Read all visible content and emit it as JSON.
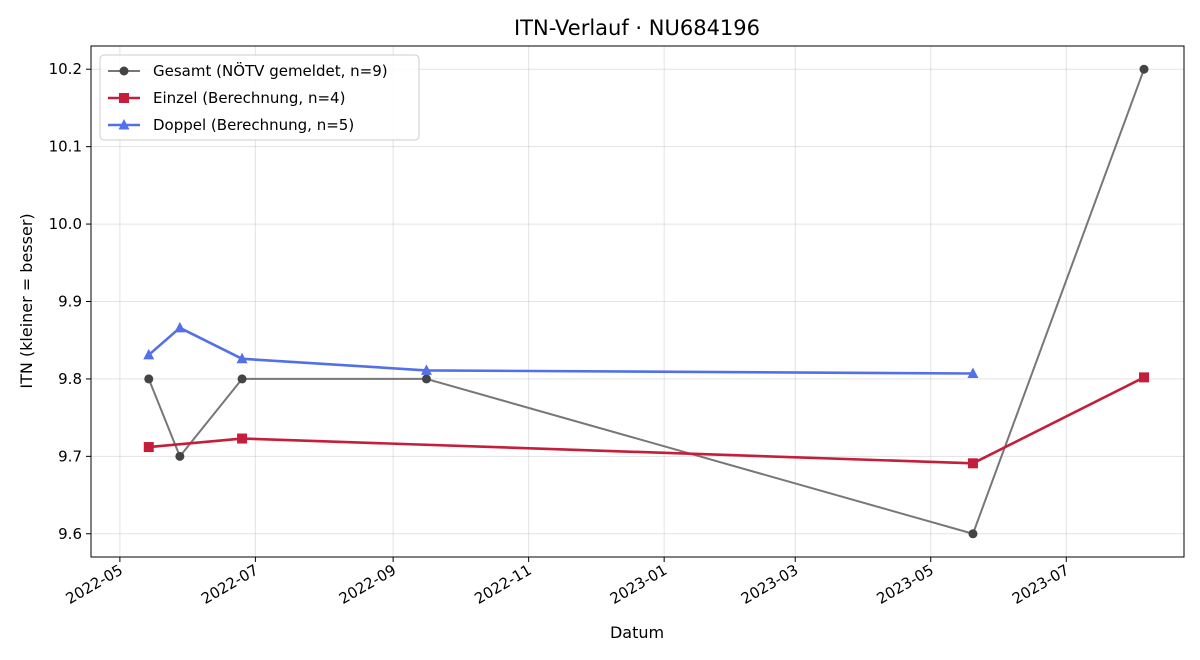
{
  "chart_data": {
    "type": "line",
    "title": "ITN-Verlauf · NU684196",
    "xlabel": "Datum",
    "ylabel": "ITN  (kleiner = besser)",
    "x_axis_type": "date",
    "xlim": [
      "2022-04-18",
      "2023-08-23"
    ],
    "ylim": [
      9.57,
      10.23
    ],
    "x_ticks": [
      "2022-05",
      "2022-07",
      "2022-09",
      "2022-11",
      "2023-01",
      "2023-03",
      "2023-05",
      "2023-07"
    ],
    "x_tick_dates": [
      "2022-05-01",
      "2022-07-01",
      "2022-09-01",
      "2022-11-01",
      "2023-01-01",
      "2023-03-01",
      "2023-05-01",
      "2023-07-01"
    ],
    "y_ticks": [
      9.6,
      9.7,
      9.8,
      9.9,
      10.0,
      10.1,
      10.2
    ],
    "y_tick_labels": [
      "9.6",
      "9.7",
      "9.8",
      "9.9",
      "10.0",
      "10.1",
      "10.2"
    ],
    "grid": true,
    "legend_position": "top-left",
    "series": [
      {
        "name": "Gesamt (NÖTV gemeldet, n=9)",
        "color": "#777777",
        "marker_color": "#444444",
        "marker": "circle",
        "points": [
          {
            "x": "2022-05-14",
            "y": 9.8
          },
          {
            "x": "2022-05-28",
            "y": 9.7
          },
          {
            "x": "2022-06-25",
            "y": 9.8
          },
          {
            "x": "2022-09-16",
            "y": 9.8
          },
          {
            "x": "2023-05-20",
            "y": 9.6
          },
          {
            "x": "2023-08-05",
            "y": 10.2
          }
        ]
      },
      {
        "name": "Einzel (Berechnung, n=4)",
        "color": "#c41e3a",
        "marker_color": "#c41e3a",
        "marker": "square",
        "points": [
          {
            "x": "2022-05-14",
            "y": 9.712
          },
          {
            "x": "2022-06-25",
            "y": 9.723
          },
          {
            "x": "2023-05-20",
            "y": 9.691
          },
          {
            "x": "2023-08-05",
            "y": 9.802
          }
        ]
      },
      {
        "name": "Doppel (Berechnung, n=5)",
        "color": "#5470e8",
        "marker_color": "#5470e8",
        "marker": "triangle",
        "points": [
          {
            "x": "2022-05-14",
            "y": 9.831
          },
          {
            "x": "2022-05-28",
            "y": 9.866
          },
          {
            "x": "2022-06-25",
            "y": 9.826
          },
          {
            "x": "2022-09-16",
            "y": 9.811
          },
          {
            "x": "2023-05-20",
            "y": 9.807
          }
        ]
      }
    ]
  }
}
